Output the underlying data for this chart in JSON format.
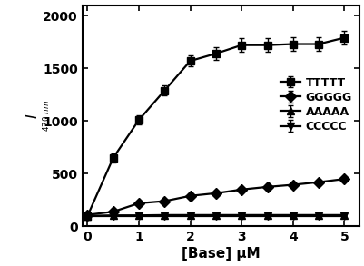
{
  "TTTTT": {
    "x": [
      0,
      0.5,
      1.0,
      1.5,
      2.0,
      2.5,
      3.0,
      3.5,
      4.0,
      4.5,
      5.0
    ],
    "y": [
      100,
      650,
      1010,
      1290,
      1570,
      1640,
      1720,
      1720,
      1730,
      1730,
      1790
    ],
    "yerr": [
      20,
      40,
      45,
      50,
      55,
      60,
      65,
      65,
      65,
      65,
      65
    ],
    "marker": "s",
    "label": "TTTTT"
  },
  "GGGGG": {
    "x": [
      0,
      0.5,
      1.0,
      1.5,
      2.0,
      2.5,
      3.0,
      3.5,
      4.0,
      4.5,
      5.0
    ],
    "y": [
      110,
      140,
      220,
      240,
      290,
      315,
      350,
      375,
      395,
      420,
      450
    ],
    "yerr": [
      10,
      10,
      12,
      12,
      12,
      12,
      12,
      12,
      12,
      12,
      12
    ],
    "marker": "D",
    "label": "GGGGG"
  },
  "AAAAA": {
    "x": [
      0,
      0.5,
      1.0,
      1.5,
      2.0,
      2.5,
      3.0,
      3.5,
      4.0,
      4.5,
      5.0
    ],
    "y": [
      100,
      105,
      105,
      108,
      108,
      108,
      108,
      108,
      108,
      108,
      108
    ],
    "yerr": [
      8,
      8,
      8,
      8,
      8,
      8,
      8,
      8,
      8,
      8,
      8
    ],
    "marker": "^",
    "label": "AAAAA"
  },
  "CCCCC": {
    "x": [
      0,
      0.5,
      1.0,
      1.5,
      2.0,
      2.5,
      3.0,
      3.5,
      4.0,
      4.5,
      5.0
    ],
    "y": [
      95,
      95,
      95,
      95,
      95,
      95,
      95,
      95,
      95,
      95,
      95
    ],
    "yerr": [
      8,
      8,
      8,
      8,
      8,
      8,
      8,
      8,
      8,
      8,
      8
    ],
    "marker": "v",
    "label": "CCCCC"
  },
  "xlim": [
    -0.1,
    5.3
  ],
  "ylim": [
    0,
    2100
  ],
  "xticks": [
    0,
    1,
    2,
    3,
    4,
    5
  ],
  "yticks": [
    0,
    500,
    1000,
    1500,
    2000
  ],
  "xlabel": "[Base] μM",
  "ylabel": "I",
  "ylabel_sub": "470 nm",
  "line_color": "#000000",
  "marker_size": 6,
  "linewidth": 1.6,
  "capsize": 2.5,
  "elinewidth": 1.0,
  "legend_labels": [
    "TTTTT",
    "GGGGG",
    "AAAAA",
    "CCCCC"
  ]
}
